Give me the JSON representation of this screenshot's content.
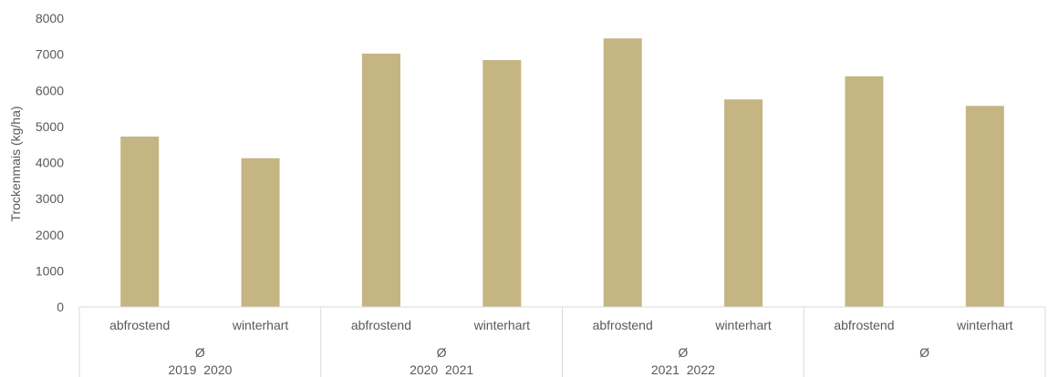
{
  "chart_data": {
    "type": "bar",
    "title": "",
    "ylabel": "Trockenmais (kg/ha)",
    "xlabel": "",
    "ylim": [
      0,
      8000
    ],
    "yticks": [
      0,
      1000,
      2000,
      3000,
      4000,
      5000,
      6000,
      7000,
      8000
    ],
    "grid": false,
    "legend": "none",
    "bar_color": "#c4b582",
    "groups": [
      {
        "label_line1": "Ø",
        "label_line2": "2019  2020",
        "categories": [
          "abfrostend",
          "winterhart"
        ],
        "values": [
          4720,
          4120
        ]
      },
      {
        "label_line1": "Ø",
        "label_line2": "2020  2021",
        "categories": [
          "abfrostend",
          "winterhart"
        ],
        "values": [
          7020,
          6840
        ]
      },
      {
        "label_line1": "Ø",
        "label_line2": "2021  2022",
        "categories": [
          "abfrostend",
          "winterhart"
        ],
        "values": [
          7440,
          5750
        ]
      },
      {
        "label_line1": "Ø",
        "label_line2": "",
        "categories": [
          "abfrostend",
          "winterhart"
        ],
        "values": [
          6390,
          5570
        ]
      }
    ]
  }
}
